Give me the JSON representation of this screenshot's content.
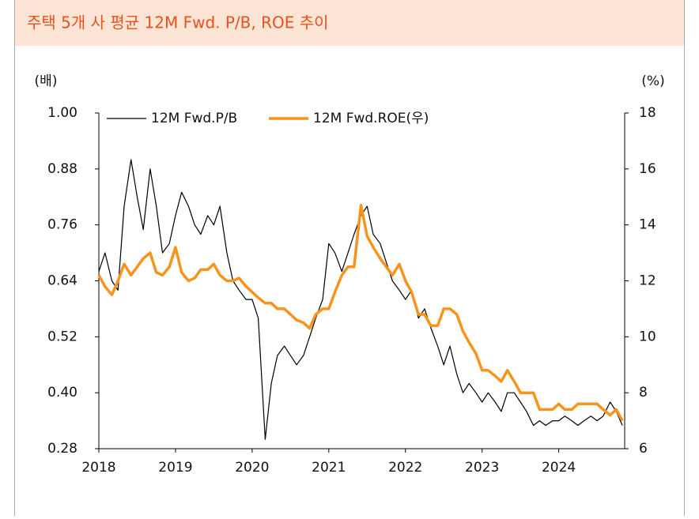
{
  "chart_data": {
    "type": "line",
    "title": "주택 5개 사 평균 12M Fwd. P/B, ROE 추이",
    "y_label": "(배)",
    "y2_label": "(%)",
    "x": [
      2018,
      2018.08,
      2018.17,
      2018.25,
      2018.33,
      2018.42,
      2018.5,
      2018.58,
      2018.67,
      2018.75,
      2018.83,
      2018.92,
      2019,
      2019.08,
      2019.17,
      2019.25,
      2019.33,
      2019.42,
      2019.5,
      2019.58,
      2019.67,
      2019.75,
      2019.83,
      2019.92,
      2020,
      2020.08,
      2020.17,
      2020.25,
      2020.33,
      2020.42,
      2020.5,
      2020.58,
      2020.67,
      2020.75,
      2020.83,
      2020.92,
      2021,
      2021.08,
      2021.17,
      2021.25,
      2021.33,
      2021.42,
      2021.5,
      2021.58,
      2021.67,
      2021.75,
      2021.83,
      2021.92,
      2022,
      2022.08,
      2022.17,
      2022.25,
      2022.33,
      2022.42,
      2022.5,
      2022.58,
      2022.67,
      2022.75,
      2022.83,
      2022.92,
      2023,
      2023.08,
      2023.17,
      2023.25,
      2023.33,
      2023.42,
      2023.5,
      2023.58,
      2023.67,
      2023.75,
      2023.83,
      2023.92,
      2024,
      2024.08,
      2024.17,
      2024.25,
      2024.33,
      2024.42,
      2024.5,
      2024.58,
      2024.67,
      2024.75,
      2024.83
    ],
    "series": [
      {
        "name": "12M Fwd.P/B",
        "color": "#000000",
        "values": [
          0.66,
          0.7,
          0.64,
          0.62,
          0.8,
          0.9,
          0.82,
          0.75,
          0.88,
          0.8,
          0.7,
          0.72,
          0.78,
          0.83,
          0.8,
          0.76,
          0.74,
          0.78,
          0.76,
          0.8,
          0.7,
          0.64,
          0.62,
          0.6,
          0.6,
          0.56,
          0.3,
          0.42,
          0.48,
          0.5,
          0.48,
          0.46,
          0.48,
          0.52,
          0.56,
          0.6,
          0.72,
          0.7,
          0.66,
          0.7,
          0.74,
          0.78,
          0.8,
          0.74,
          0.72,
          0.68,
          0.64,
          0.62,
          0.6,
          0.62,
          0.56,
          0.58,
          0.54,
          0.5,
          0.46,
          0.5,
          0.44,
          0.4,
          0.42,
          0.4,
          0.38,
          0.4,
          0.38,
          0.36,
          0.4,
          0.4,
          0.38,
          0.36,
          0.33,
          0.34,
          0.33,
          0.34,
          0.34,
          0.35,
          0.34,
          0.33,
          0.34,
          0.35,
          0.34,
          0.35,
          0.38,
          0.36,
          0.33
        ]
      },
      {
        "name": "12M Fwd.ROE(우)",
        "color": "#f7941d",
        "axis": "y2",
        "values": [
          12.2,
          11.8,
          11.5,
          12,
          12.6,
          12.2,
          12.5,
          12.8,
          13,
          12.3,
          12.2,
          12.5,
          13.2,
          12.3,
          12.0,
          12.1,
          12.4,
          12.4,
          12.6,
          12.2,
          12.0,
          12.0,
          12.1,
          11.8,
          11.6,
          11.4,
          11.2,
          11.2,
          11.0,
          11.0,
          10.8,
          10.6,
          10.5,
          10.3,
          10.8,
          11.0,
          11.0,
          11.6,
          12.2,
          12.5,
          12.5,
          14.7,
          13.6,
          13.2,
          12.8,
          12.5,
          12.2,
          12.6,
          12.0,
          11.6,
          10.8,
          10.8,
          10.4,
          10.4,
          11.0,
          11.0,
          10.8,
          10.2,
          9.8,
          9.4,
          8.8,
          8.8,
          8.6,
          8.4,
          8.8,
          8.4,
          8.0,
          8.0,
          8.0,
          7.4,
          7.4,
          7.4,
          7.6,
          7.4,
          7.4,
          7.6,
          7.6,
          7.6,
          7.6,
          7.4,
          7.2,
          7.4,
          7.0
        ]
      }
    ],
    "xlim": [
      2018,
      2024.86
    ],
    "xticks": [
      2018,
      2019,
      2020,
      2021,
      2022,
      2023,
      2024
    ],
    "ylim": [
      0.28,
      1.0
    ],
    "yticks": [
      0.28,
      {
        "value": 0.4,
        "label": "0.40"
      },
      0.52,
      0.64,
      0.76,
      0.88,
      {
        "value": 1.0,
        "label": "1.00"
      }
    ],
    "y2lim": [
      6,
      18
    ],
    "y2ticks": [
      6,
      8,
      10,
      12,
      14,
      16,
      18
    ],
    "legend": "top"
  }
}
